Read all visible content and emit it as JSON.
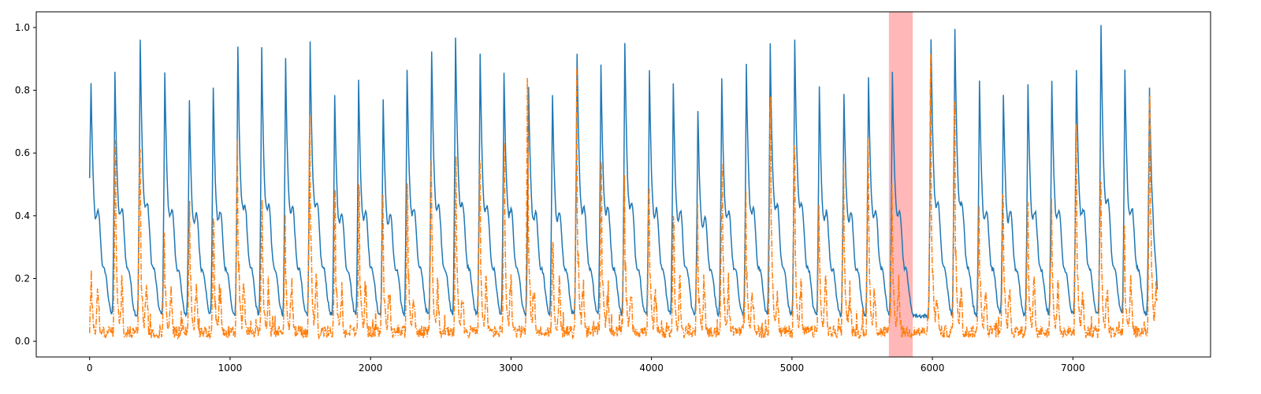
{
  "chart_data": {
    "type": "line",
    "title": "",
    "xlabel": "",
    "ylabel": "",
    "xlim": [
      -380,
      7980
    ],
    "ylim": [
      -0.05,
      1.05
    ],
    "x_ticks": [
      0,
      1000,
      2000,
      3000,
      4000,
      5000,
      6000,
      7000
    ],
    "x_tick_labels": [
      "0",
      "1000",
      "2000",
      "3000",
      "4000",
      "5000",
      "6000",
      "7000"
    ],
    "y_ticks": [
      0.0,
      0.2,
      0.4,
      0.6,
      0.8,
      1.0
    ],
    "y_tick_labels": [
      "0.0",
      "0.2",
      "0.4",
      "0.6",
      "0.8",
      "1.0"
    ],
    "grid": false,
    "legend": "none",
    "highlight_span": {
      "x0": 5690,
      "x1": 5860,
      "color": "#ffb3b3"
    },
    "x_end": 7600,
    "series": [
      {
        "color": "#1f77b4",
        "style": "solid",
        "start_value": 0.52,
        "end_value": 0.17,
        "peaks": [
          {
            "x": 10,
            "y": 0.82
          },
          {
            "x": 180,
            "y": 0.86
          },
          {
            "x": 360,
            "y": 0.96
          },
          {
            "x": 535,
            "y": 0.86
          },
          {
            "x": 710,
            "y": 0.77
          },
          {
            "x": 880,
            "y": 0.81
          },
          {
            "x": 1055,
            "y": 0.94
          },
          {
            "x": 1225,
            "y": 0.93
          },
          {
            "x": 1395,
            "y": 0.9
          },
          {
            "x": 1570,
            "y": 0.95
          },
          {
            "x": 1745,
            "y": 0.78
          },
          {
            "x": 1915,
            "y": 0.83
          },
          {
            "x": 2090,
            "y": 0.77
          },
          {
            "x": 2260,
            "y": 0.87
          },
          {
            "x": 2435,
            "y": 0.93
          },
          {
            "x": 2605,
            "y": 0.97
          },
          {
            "x": 2780,
            "y": 0.91
          },
          {
            "x": 2950,
            "y": 0.86
          },
          {
            "x": 3125,
            "y": 0.81
          },
          {
            "x": 3295,
            "y": 0.79
          },
          {
            "x": 3470,
            "y": 0.91
          },
          {
            "x": 3640,
            "y": 0.88
          },
          {
            "x": 3810,
            "y": 0.95
          },
          {
            "x": 3985,
            "y": 0.86
          },
          {
            "x": 4155,
            "y": 0.82
          },
          {
            "x": 4330,
            "y": 0.74
          },
          {
            "x": 4500,
            "y": 0.83
          },
          {
            "x": 4675,
            "y": 0.88
          },
          {
            "x": 4845,
            "y": 0.95
          },
          {
            "x": 5020,
            "y": 0.96
          },
          {
            "x": 5195,
            "y": 0.81
          },
          {
            "x": 5370,
            "y": 0.79
          },
          {
            "x": 5545,
            "y": 0.84
          },
          {
            "x": 5715,
            "y": 0.86
          },
          {
            "x": 5990,
            "y": 0.96
          },
          {
            "x": 6160,
            "y": 0.99
          },
          {
            "x": 6335,
            "y": 0.83
          },
          {
            "x": 6505,
            "y": 0.79
          },
          {
            "x": 6680,
            "y": 0.82
          },
          {
            "x": 6850,
            "y": 0.83
          },
          {
            "x": 7025,
            "y": 0.86
          },
          {
            "x": 7200,
            "y": 1.0
          },
          {
            "x": 7370,
            "y": 0.87
          },
          {
            "x": 7545,
            "y": 0.81
          }
        ]
      },
      {
        "color": "#ff7f0e",
        "style": "dashdot",
        "peaks": [
          {
            "x": 10,
            "y": 0.24
          },
          {
            "x": 180,
            "y": 0.66
          },
          {
            "x": 355,
            "y": 0.63
          },
          {
            "x": 530,
            "y": 0.37
          },
          {
            "x": 710,
            "y": 0.46
          },
          {
            "x": 880,
            "y": 0.41
          },
          {
            "x": 1050,
            "y": 0.69
          },
          {
            "x": 1225,
            "y": 0.46
          },
          {
            "x": 1390,
            "y": 0.44
          },
          {
            "x": 1565,
            "y": 0.77
          },
          {
            "x": 1745,
            "y": 0.52
          },
          {
            "x": 1915,
            "y": 0.5
          },
          {
            "x": 2085,
            "y": 0.48
          },
          {
            "x": 2260,
            "y": 0.52
          },
          {
            "x": 2430,
            "y": 0.63
          },
          {
            "x": 2605,
            "y": 0.6
          },
          {
            "x": 2775,
            "y": 0.58
          },
          {
            "x": 2950,
            "y": 0.67
          },
          {
            "x": 3115,
            "y": 0.86
          },
          {
            "x": 3295,
            "y": 0.34
          },
          {
            "x": 3465,
            "y": 0.9
          },
          {
            "x": 3640,
            "y": 0.58
          },
          {
            "x": 3805,
            "y": 0.58
          },
          {
            "x": 3980,
            "y": 0.5
          },
          {
            "x": 4155,
            "y": 0.41
          },
          {
            "x": 4325,
            "y": 0.44
          },
          {
            "x": 4500,
            "y": 0.6
          },
          {
            "x": 4670,
            "y": 0.48
          },
          {
            "x": 4845,
            "y": 0.85
          },
          {
            "x": 5015,
            "y": 0.64
          },
          {
            "x": 5190,
            "y": 0.45
          },
          {
            "x": 5365,
            "y": 0.6
          },
          {
            "x": 5540,
            "y": 0.67
          },
          {
            "x": 5710,
            "y": 0.52
          },
          {
            "x": 5985,
            "y": 0.99
          },
          {
            "x": 6155,
            "y": 0.82
          },
          {
            "x": 6330,
            "y": 0.48
          },
          {
            "x": 6500,
            "y": 0.5
          },
          {
            "x": 6675,
            "y": 0.48
          },
          {
            "x": 6845,
            "y": 0.48
          },
          {
            "x": 7020,
            "y": 0.7
          },
          {
            "x": 7195,
            "y": 0.53
          },
          {
            "x": 7365,
            "y": 0.38
          },
          {
            "x": 7545,
            "y": 0.84
          }
        ]
      }
    ]
  }
}
